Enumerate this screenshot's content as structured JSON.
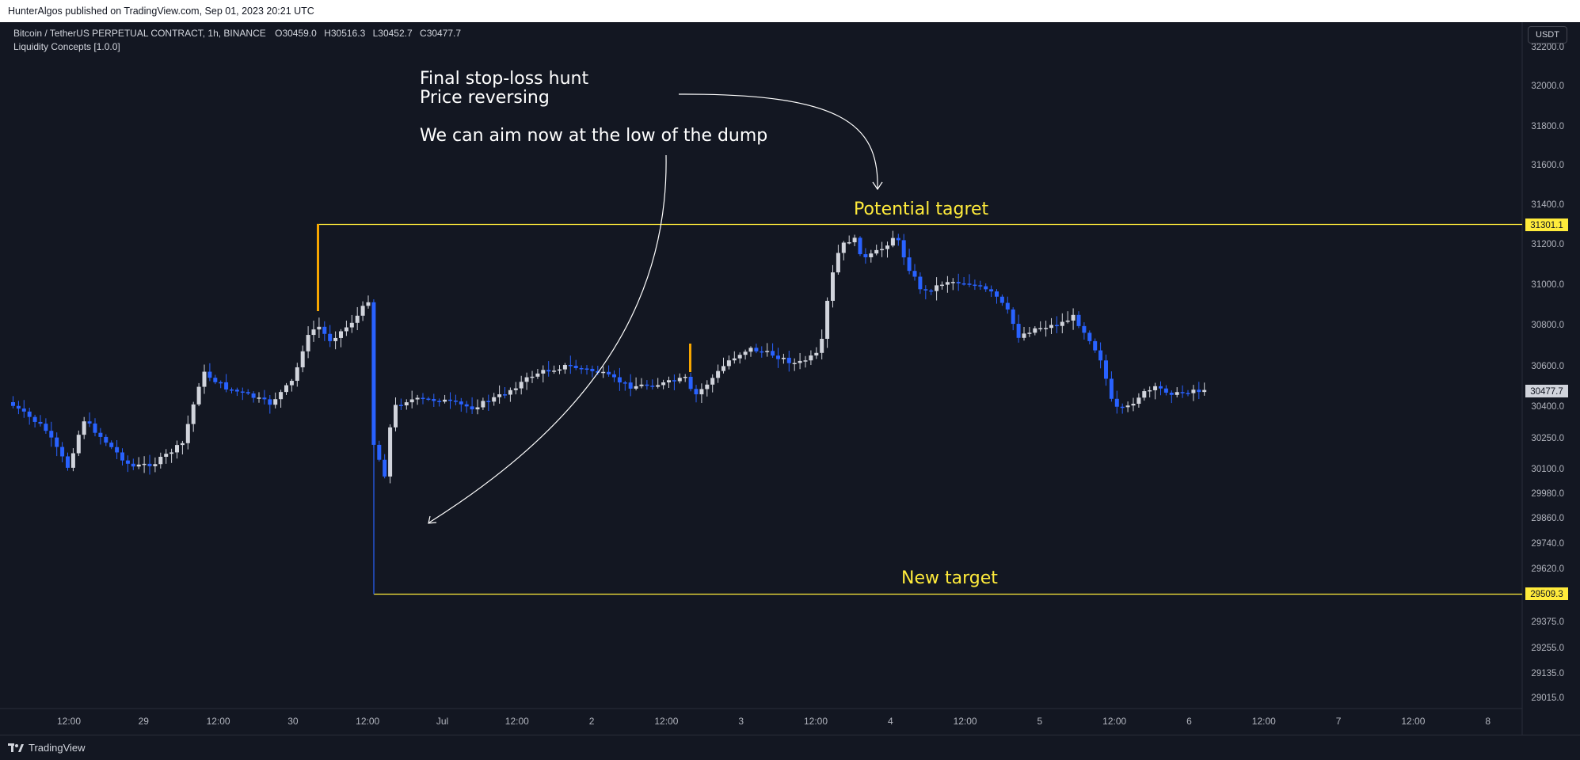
{
  "header": {
    "published": "HunterAlgos published on TradingView.com, Sep 01, 2023 20:21 UTC"
  },
  "legend": {
    "symbol": "Bitcoin / TetherUS PERPETUAL CONTRACT, 1h, BINANCE",
    "open_label": "O",
    "open": "30459.0",
    "high_label": "H",
    "high": "30516.3",
    "low_label": "L",
    "low": "30452.7",
    "close_label": "C",
    "close": "30477.7",
    "indicator": "Liquidity Concepts [1.0.0]"
  },
  "currency_button": "USDT",
  "footer": {
    "brand": "TradingView"
  },
  "colors": {
    "background": "#131722",
    "bull": "#d1d4dc",
    "bear": "#2962ff",
    "level": "#ffeb3b",
    "wick_marker": "#f7a600"
  },
  "annotations": {
    "line1": "Final stop-loss hunt",
    "line2": "Price reversing",
    "line3": "We can aim now at the low of the dump",
    "potential": "Potential tagret",
    "new_target": "New target"
  },
  "chart_data": {
    "type": "candlestick",
    "title": "",
    "x_tick_labels": [
      "12:00",
      "29",
      "12:00",
      "30",
      "12:00",
      "Jul",
      "12:00",
      "2",
      "12:00",
      "3",
      "12:00",
      "4",
      "12:00",
      "5",
      "12:00",
      "6",
      "12:00",
      "7",
      "12:00",
      "8"
    ],
    "y_tick_labels": [
      "32200.0",
      "32000.0",
      "31800.0",
      "31600.0",
      "31400.0",
      "31200.0",
      "31000.0",
      "30800.0",
      "30600.0",
      "30400.0",
      "30250.0",
      "30100.0",
      "29980.0",
      "29860.0",
      "29740.0",
      "29620.0",
      "29375.0",
      "29255.0",
      "29135.0",
      "29015.0"
    ],
    "levels": [
      {
        "label": "31301.1",
        "value": 31301.1
      },
      {
        "label": "29509.3",
        "value": 29509.3
      }
    ],
    "last_price": {
      "label": "30477.7",
      "value": 30477.7
    },
    "grid": false
  }
}
